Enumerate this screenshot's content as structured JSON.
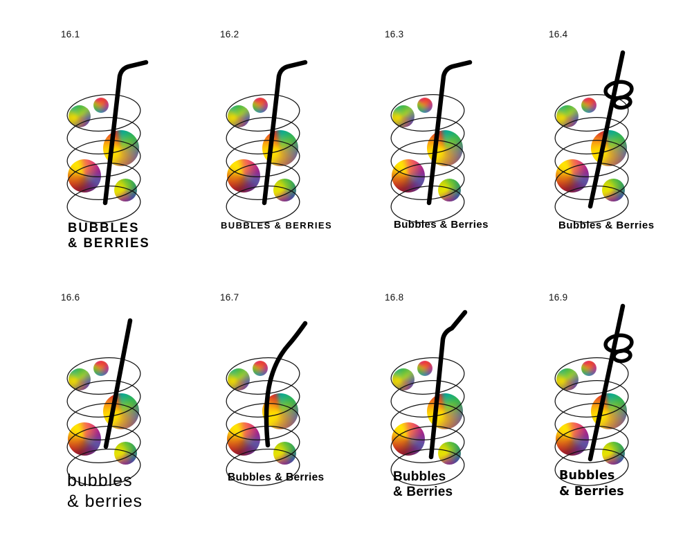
{
  "sheet": {
    "background": "#ffffff",
    "ink": "#000000",
    "coil_stroke": "#111111",
    "straw_color": "#000000"
  },
  "palette": {
    "rainbow_sphere_colors": [
      "#e01274",
      "#e8342a",
      "#f7941d",
      "#ffe800",
      "#a8c912",
      "#2bb24c",
      "#1a9e9a",
      "#3d4fa1",
      "#5b57a6",
      "#8c2b8f",
      "#ec0c8c"
    ]
  },
  "variants": [
    {
      "id": "16.1",
      "straw": "bent",
      "logo_style": "deco-two-line",
      "logo_lines": [
        "BUBBLES",
        "& BERRIES"
      ]
    },
    {
      "id": "16.2",
      "straw": "bent",
      "logo_style": "deco-one-line",
      "logo_lines": [
        "BUBBLES & BERRIES"
      ]
    },
    {
      "id": "16.3",
      "straw": "bent",
      "logo_style": "geometric-sans",
      "logo_lines": [
        "Bubbles & Berries"
      ]
    },
    {
      "id": "16.4",
      "straw": "curly",
      "logo_style": "bold-rounded",
      "logo_lines": [
        "Bubbles & Berries"
      ]
    },
    {
      "id": "16.6",
      "straw": "straight",
      "logo_style": "futuristic-lower",
      "logo_lines": [
        "bubbles",
        "& berries"
      ]
    },
    {
      "id": "16.7",
      "straw": "curved",
      "logo_style": "bold-sans",
      "logo_lines": [
        "Bubbles & Berries"
      ]
    },
    {
      "id": "16.8",
      "straw": "bent-high",
      "logo_style": "bold-two-line",
      "logo_lines": [
        "Bubbles",
        "& Berries"
      ]
    },
    {
      "id": "16.9",
      "straw": "curly-high",
      "logo_style": "wide-bold-two-line",
      "logo_lines": [
        "Bubbles",
        "& Berries"
      ]
    }
  ]
}
